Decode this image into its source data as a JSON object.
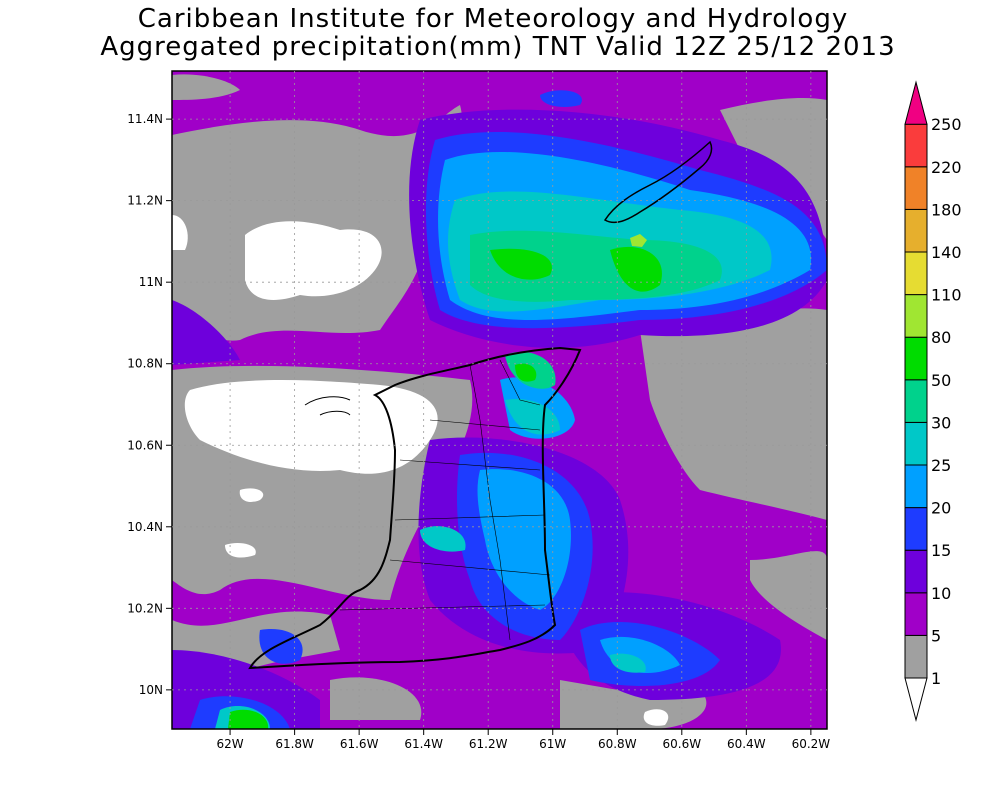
{
  "header": {
    "title": "Caribbean Institute for Meteorology and Hydrology",
    "subtitle": "Aggregated precipitation(mm) TNT Valid 12Z 25/12 2013"
  },
  "map": {
    "xlim": [
      -62.18,
      -60.15
    ],
    "ylim": [
      9.904,
      11.518
    ],
    "xticks": [
      {
        "value": -62.0,
        "label": "62W"
      },
      {
        "value": -61.8,
        "label": "61.8W"
      },
      {
        "value": -61.6,
        "label": "61.6W"
      },
      {
        "value": -61.4,
        "label": "61.4W"
      },
      {
        "value": -61.2,
        "label": "61.2W"
      },
      {
        "value": -61.0,
        "label": "61W"
      },
      {
        "value": -60.8,
        "label": "60.8W"
      },
      {
        "value": -60.6,
        "label": "60.6W"
      },
      {
        "value": -60.4,
        "label": "60.4W"
      },
      {
        "value": -60.2,
        "label": "60.2W"
      }
    ],
    "yticks": [
      {
        "value": 10.0,
        "label": "10N"
      },
      {
        "value": 10.2,
        "label": "10.2N"
      },
      {
        "value": 10.4,
        "label": "10.4N"
      },
      {
        "value": 10.6,
        "label": "10.6N"
      },
      {
        "value": 10.8,
        "label": "10.8N"
      },
      {
        "value": 11.0,
        "label": "11N"
      },
      {
        "value": 11.2,
        "label": "11.2N"
      },
      {
        "value": 11.4,
        "label": "11.4N"
      }
    ],
    "grid": true
  },
  "colorbar": {
    "levels": [
      1,
      5,
      10,
      15,
      20,
      25,
      30,
      50,
      80,
      110,
      140,
      180,
      220,
      250
    ],
    "colors": [
      "#ffffff",
      "#a0a0a0",
      "#a000c8",
      "#6e00dc",
      "#1e3cff",
      "#00a0ff",
      "#00c8c8",
      "#00d28c",
      "#00dc00",
      "#a0e632",
      "#e6dc32",
      "#e6af2d",
      "#f08228",
      "#fa3c3c",
      "#f00082"
    ]
  }
}
